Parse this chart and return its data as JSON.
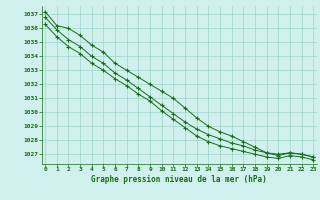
{
  "hours": [
    0,
    1,
    2,
    3,
    4,
    5,
    6,
    7,
    8,
    9,
    10,
    11,
    12,
    13,
    14,
    15,
    16,
    17,
    18,
    19,
    20,
    21,
    22,
    23
  ],
  "line1": [
    1037.2,
    1036.2,
    1036.0,
    1035.5,
    1034.8,
    1034.3,
    1033.5,
    1033.0,
    1032.5,
    1032.0,
    1031.5,
    1031.0,
    1030.3,
    1029.6,
    1029.0,
    1028.6,
    1028.3,
    1027.9,
    1027.5,
    1027.1,
    1027.0,
    1027.1,
    1027.0,
    1026.8
  ],
  "line2": [
    1036.8,
    1035.9,
    1035.2,
    1034.7,
    1034.0,
    1033.5,
    1032.8,
    1032.3,
    1031.7,
    1031.1,
    1030.5,
    1029.9,
    1029.3,
    1028.8,
    1028.4,
    1028.1,
    1027.8,
    1027.6,
    1027.3,
    1027.1,
    1026.9,
    1027.1,
    1027.0,
    1026.8
  ],
  "line3": [
    1036.3,
    1035.4,
    1034.7,
    1034.2,
    1033.5,
    1033.0,
    1032.4,
    1031.9,
    1031.3,
    1030.8,
    1030.1,
    1029.5,
    1028.9,
    1028.3,
    1027.9,
    1027.6,
    1027.4,
    1027.2,
    1027.0,
    1026.8,
    1026.7,
    1026.9,
    1026.8,
    1026.6
  ],
  "line_color": "#1a6b1a",
  "bg_color": "#cff0ec",
  "grid_color": "#9ed5cc",
  "text_color": "#1a6b1a",
  "xlabel": "Graphe pression niveau de la mer (hPa)",
  "ylim_min": 1026.3,
  "ylim_max": 1037.6,
  "yticks": [
    1027,
    1028,
    1029,
    1030,
    1031,
    1032,
    1033,
    1034,
    1035,
    1036,
    1037
  ],
  "xticks": [
    0,
    1,
    2,
    3,
    4,
    5,
    6,
    7,
    8,
    9,
    10,
    11,
    12,
    13,
    14,
    15,
    16,
    17,
    18,
    19,
    20,
    21,
    22,
    23
  ]
}
